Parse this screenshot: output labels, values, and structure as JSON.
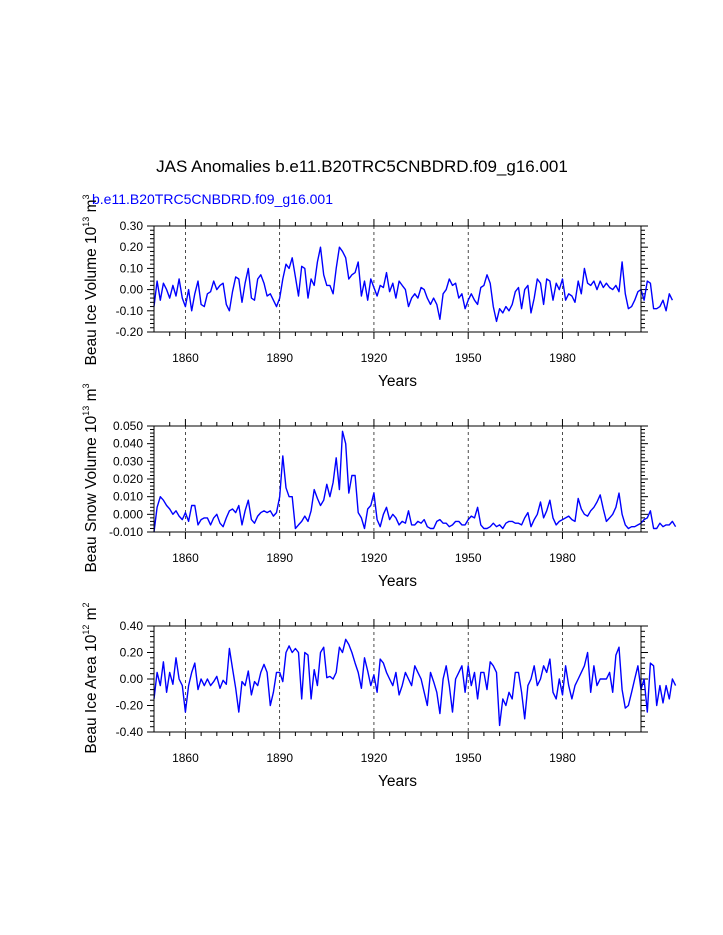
{
  "title": "JAS Anomalies b.e11.B20TRC5CNBDRD.f09_g16.001",
  "subtitle": "b.e11.B20TRC5CNBDRD.f09_g16.001",
  "colors": {
    "series": "#0000ff",
    "axis": "#000000",
    "subtitle": "#0000ff"
  },
  "chart_data": [
    {
      "type": "line",
      "ylabel": "Beau Ice Volume",
      "unit_base": "10",
      "unit_exp": "13",
      "unit_sym": "m",
      "unit_pow": "3",
      "xlabel": "Years",
      "xlim": [
        1850,
        2005
      ],
      "ylim": [
        -0.2,
        0.3
      ],
      "xticks": [
        1860,
        1890,
        1920,
        1950,
        1980
      ],
      "xtick_labels": [
        "1860",
        "1890",
        "1920",
        "1950",
        "1980"
      ],
      "yticks": [
        -0.2,
        -0.1,
        0.0,
        0.1,
        0.2,
        0.3
      ],
      "ytick_labels": [
        "-0.20",
        "-0.10",
        "0.00",
        "0.10",
        "0.20",
        "0.30"
      ],
      "grid": "vertical dashed at x ticks",
      "x_start": 1850,
      "series": [
        {
          "name": "b.e11.B20TRC5CNBDRD.f09_g16.001",
          "values": [
            -0.08,
            0.04,
            -0.05,
            0.03,
            0.0,
            -0.04,
            0.02,
            -0.03,
            0.05,
            -0.04,
            -0.08,
            0.0,
            -0.1,
            -0.02,
            0.04,
            -0.07,
            -0.08,
            -0.02,
            -0.01,
            0.04,
            0.0,
            0.02,
            0.03,
            -0.07,
            -0.1,
            -0.01,
            0.06,
            0.05,
            -0.06,
            0.03,
            0.1,
            -0.04,
            -0.05,
            0.05,
            0.07,
            0.03,
            -0.03,
            -0.02,
            -0.05,
            -0.08,
            -0.04,
            0.05,
            0.12,
            0.1,
            0.15,
            0.06,
            -0.03,
            0.11,
            0.1,
            -0.04,
            0.05,
            0.02,
            0.13,
            0.2,
            0.07,
            0.02,
            0.02,
            -0.02,
            0.1,
            0.2,
            0.18,
            0.15,
            0.05,
            0.07,
            0.08,
            0.13,
            -0.03,
            0.04,
            -0.05,
            0.05,
            0.01,
            -0.03,
            0.02,
            0.01,
            0.08,
            -0.01,
            0.03,
            -0.04,
            0.04,
            0.02,
            0.0,
            -0.08,
            -0.04,
            -0.02,
            -0.04,
            0.01,
            0.0,
            -0.04,
            -0.07,
            -0.04,
            -0.07,
            -0.14,
            -0.02,
            0.0,
            0.05,
            0.02,
            0.03,
            -0.04,
            -0.02,
            -0.09,
            -0.05,
            -0.02,
            -0.05,
            -0.07,
            0.01,
            0.02,
            0.07,
            0.03,
            -0.08,
            -0.15,
            -0.09,
            -0.11,
            -0.08,
            -0.1,
            -0.07,
            -0.01,
            0.01,
            -0.09,
            0.0,
            0.02,
            -0.11,
            -0.04,
            0.05,
            0.03,
            -0.07,
            0.05,
            0.04,
            -0.05,
            0.03,
            0.0,
            0.05,
            -0.05,
            -0.02,
            -0.03,
            -0.06,
            0.04,
            -0.02,
            0.1,
            0.03,
            0.02,
            0.04,
            0.0,
            0.04,
            0.01,
            0.03,
            0.01,
            0.0,
            0.02,
            -0.01,
            0.13,
            -0.02,
            -0.09,
            -0.08,
            -0.05,
            -0.01,
            0.0,
            -0.05,
            0.04,
            0.03,
            -0.09,
            -0.09,
            -0.08,
            -0.05,
            -0.1,
            -0.02,
            -0.05
          ]
        }
      ]
    },
    {
      "type": "line",
      "ylabel": "Beau Snow Volume",
      "unit_base": "10",
      "unit_exp": "13",
      "unit_sym": "m",
      "unit_pow": "3",
      "xlabel": "Years",
      "xlim": [
        1850,
        2005
      ],
      "ylim": [
        -0.01,
        0.05
      ],
      "xticks": [
        1860,
        1890,
        1920,
        1950,
        1980
      ],
      "xtick_labels": [
        "1860",
        "1890",
        "1920",
        "1950",
        "1980"
      ],
      "yticks": [
        -0.01,
        0.0,
        0.01,
        0.02,
        0.03,
        0.04,
        0.05
      ],
      "ytick_labels": [
        "-0.010",
        "0.000",
        "0.010",
        "0.020",
        "0.030",
        "0.040",
        "0.050"
      ],
      "grid": "vertical dashed at x ticks",
      "x_start": 1850,
      "series": [
        {
          "name": "b.e11.B20TRC5CNBDRD.f09_g16.001",
          "values": [
            -0.01,
            0.004,
            0.01,
            0.008,
            0.005,
            0.003,
            0.0,
            0.002,
            -0.001,
            -0.003,
            0.001,
            -0.004,
            0.005,
            0.005,
            -0.006,
            -0.003,
            -0.002,
            -0.002,
            -0.006,
            -0.002,
            0.0,
            -0.005,
            -0.007,
            -0.002,
            0.002,
            0.003,
            0.001,
            0.005,
            -0.006,
            0.002,
            0.008,
            -0.003,
            -0.005,
            -0.001,
            0.001,
            0.002,
            0.001,
            0.002,
            -0.001,
            0.001,
            0.01,
            0.033,
            0.015,
            0.01,
            0.01,
            -0.008,
            -0.006,
            -0.004,
            -0.001,
            -0.004,
            0.002,
            0.014,
            0.009,
            0.005,
            0.008,
            0.017,
            0.01,
            0.018,
            0.032,
            0.014,
            0.047,
            0.04,
            0.012,
            0.022,
            0.022,
            0.001,
            -0.002,
            -0.008,
            0.003,
            0.005,
            0.012,
            -0.003,
            -0.007,
            0.0,
            0.004,
            -0.003,
            0.0,
            -0.002,
            -0.006,
            -0.004,
            -0.005,
            0.002,
            -0.006,
            -0.006,
            -0.004,
            -0.005,
            -0.003,
            -0.007,
            -0.008,
            -0.008,
            -0.004,
            -0.003,
            -0.005,
            -0.005,
            -0.007,
            -0.006,
            -0.004,
            -0.004,
            -0.006,
            -0.006,
            -0.003,
            -0.001,
            -0.002,
            0.004,
            -0.006,
            -0.008,
            -0.008,
            -0.007,
            -0.005,
            -0.007,
            -0.006,
            -0.008,
            -0.005,
            -0.004,
            -0.004,
            -0.005,
            -0.005,
            -0.006,
            -0.002,
            0.001,
            -0.007,
            -0.003,
            0.0,
            0.007,
            -0.002,
            0.002,
            0.008,
            -0.002,
            -0.006,
            -0.004,
            -0.003,
            -0.002,
            -0.001,
            -0.003,
            -0.004,
            0.009,
            0.003,
            0.0,
            -0.001,
            0.002,
            0.004,
            0.007,
            0.011,
            0.003,
            -0.004,
            -0.002,
            0.0,
            0.004,
            0.012,
            0.0,
            -0.006,
            -0.008,
            -0.007,
            -0.007,
            -0.006,
            -0.005,
            -0.003,
            -0.002,
            0.002,
            -0.008,
            -0.008,
            -0.005,
            -0.007,
            -0.006,
            -0.006,
            -0.004,
            -0.007
          ]
        }
      ]
    },
    {
      "type": "line",
      "ylabel": "Beau Ice Area",
      "unit_base": "10",
      "unit_exp": "12",
      "unit_sym": "m",
      "unit_pow": "2",
      "xlabel": "Years",
      "xlim": [
        1850,
        2005
      ],
      "ylim": [
        -0.4,
        0.4
      ],
      "xticks": [
        1860,
        1890,
        1920,
        1950,
        1980
      ],
      "xtick_labels": [
        "1860",
        "1890",
        "1920",
        "1950",
        "1980"
      ],
      "yticks": [
        -0.4,
        -0.2,
        0.0,
        0.2,
        0.4
      ],
      "ytick_labels": [
        "-0.40",
        "-0.20",
        "0.00",
        "0.20",
        "0.40"
      ],
      "grid": "vertical dashed at x ticks",
      "x_start": 1850,
      "series": [
        {
          "name": "b.e11.B20TRC5CNBDRD.f09_g16.001",
          "values": [
            -0.15,
            0.05,
            -0.05,
            0.13,
            -0.1,
            0.05,
            -0.04,
            0.16,
            0.0,
            -0.05,
            -0.25,
            -0.05,
            0.05,
            0.12,
            -0.08,
            0.0,
            -0.05,
            0.0,
            -0.05,
            -0.02,
            0.02,
            -0.07,
            -0.01,
            -0.04,
            0.23,
            0.08,
            -0.07,
            -0.25,
            -0.02,
            -0.05,
            0.06,
            -0.12,
            -0.02,
            -0.05,
            0.05,
            0.11,
            0.05,
            -0.2,
            -0.1,
            0.05,
            0.05,
            -0.02,
            0.2,
            0.25,
            0.2,
            0.23,
            0.2,
            -0.15,
            0.2,
            0.18,
            -0.15,
            0.07,
            -0.05,
            0.2,
            0.24,
            0.01,
            0.02,
            0.0,
            0.05,
            0.24,
            0.2,
            0.3,
            0.26,
            0.2,
            0.12,
            0.05,
            -0.07,
            0.16,
            0.06,
            -0.05,
            0.03,
            -0.1,
            0.15,
            0.12,
            0.05,
            0.0,
            -0.05,
            0.05,
            -0.12,
            -0.05,
            0.05,
            0.0,
            -0.05,
            0.1,
            0.05,
            0.0,
            -0.1,
            -0.2,
            0.05,
            -0.02,
            -0.1,
            -0.26,
            0.0,
            0.1,
            -0.05,
            -0.25,
            0.0,
            0.05,
            0.1,
            -0.1,
            0.1,
            -0.05,
            0.05,
            -0.15,
            0.05,
            0.05,
            -0.08,
            0.13,
            0.1,
            0.05,
            -0.35,
            -0.15,
            -0.2,
            -0.1,
            -0.15,
            0.05,
            0.05,
            -0.1,
            -0.3,
            -0.05,
            0.0,
            0.1,
            -0.05,
            0.0,
            0.1,
            0.05,
            0.15,
            -0.1,
            -0.15,
            0.0,
            -0.12,
            0.1,
            -0.05,
            -0.15,
            -0.05,
            0.0,
            0.05,
            0.1,
            0.2,
            -0.1,
            0.1,
            -0.05,
            0.0,
            0.0,
            0.0,
            0.05,
            -0.1,
            0.18,
            0.24,
            -0.08,
            -0.22,
            -0.2,
            -0.1,
            0.0,
            0.1,
            -0.08,
            0.0,
            -0.25,
            0.12,
            0.1,
            -0.2,
            -0.05,
            -0.18,
            -0.05,
            -0.15,
            0.0,
            -0.05
          ]
        }
      ]
    }
  ]
}
